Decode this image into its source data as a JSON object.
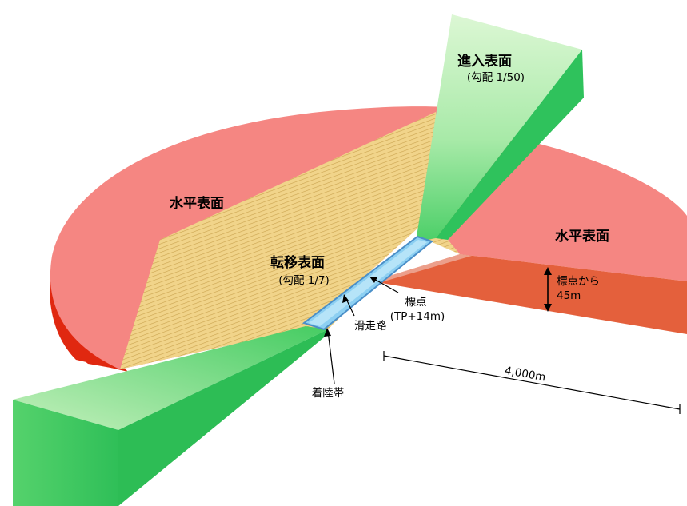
{
  "labels": {
    "approach_title": "進入表面",
    "approach_slope": "(勾配 1/50)",
    "horizontal_left": "水平表面",
    "horizontal_right": "水平表面",
    "transition_title": "転移表面",
    "transition_slope": "(勾配 1/7)",
    "reference_point_1": "標点",
    "reference_point_2": "(TP+14m)",
    "height_1": "標点から",
    "height_2": "45m",
    "runway": "滑走路",
    "landing_strip": "着陸帯",
    "distance": "4,000m"
  },
  "colors": {
    "horizontal_top": "#f58682",
    "horizontal_side_left": "#e02810",
    "horizontal_side_right": "#e4603c",
    "transition_fill": "#f1d48a",
    "transition_hatch": "#c9a24e",
    "approach_light": "#c6f2bd",
    "approach_mid": "#6fdc7c",
    "approach_dark": "#2fc25c",
    "runway": "#8dd0f2",
    "runway_edge": "#4a8fc8"
  }
}
